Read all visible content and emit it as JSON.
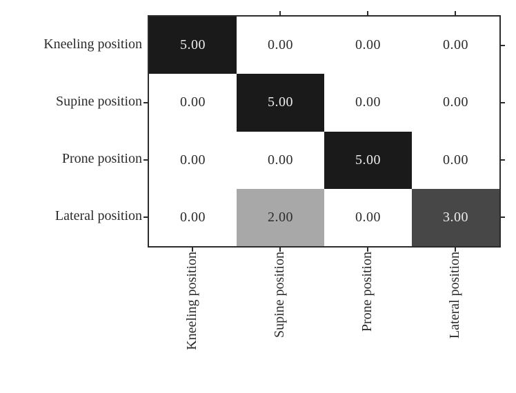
{
  "figure": {
    "y_axis": {
      "labels": [
        "Kneeling position",
        "Supine position",
        "Prone position",
        "Lateral position"
      ]
    },
    "x_axis": {
      "labels": [
        "Kneeling position",
        "Supine position",
        "Prone position",
        "Lateral position"
      ]
    },
    "cells": [
      [
        "5.00",
        "0.00",
        "0.00",
        "0.00"
      ],
      [
        "0.00",
        "5.00",
        "0.00",
        "0.00"
      ],
      [
        "0.00",
        "0.00",
        "5.00",
        "0.00"
      ],
      [
        "0.00",
        "2.00",
        "0.00",
        "3.00"
      ]
    ]
  },
  "colors": {
    "cell_max": "#1a1a1a",
    "cell_high": "#474747",
    "cell_mid": "#a8a8a8",
    "cell_zero": "#ffffff",
    "ink": "#2b2b2b",
    "ink_light": "#ececec",
    "axis": "#2b2b2b"
  },
  "chart_data": {
    "type": "heatmap",
    "title": "",
    "x_categories": [
      "Kneeling position",
      "Supine position",
      "Prone position",
      "Lateral position"
    ],
    "y_categories": [
      "Kneeling position",
      "Supine position",
      "Prone position",
      "Lateral position"
    ],
    "values": [
      [
        5,
        0,
        0,
        0
      ],
      [
        0,
        5,
        0,
        0
      ],
      [
        0,
        0,
        5,
        0
      ],
      [
        0,
        2,
        0,
        3
      ]
    ],
    "value_format": "two decimal places, printed in each cell",
    "value_range": [
      0,
      5
    ],
    "colormap": "reversed grayscale (0 = white, 5 = black)",
    "x_tick_label_rotation_deg": 90,
    "grid": false,
    "legend": "none"
  }
}
